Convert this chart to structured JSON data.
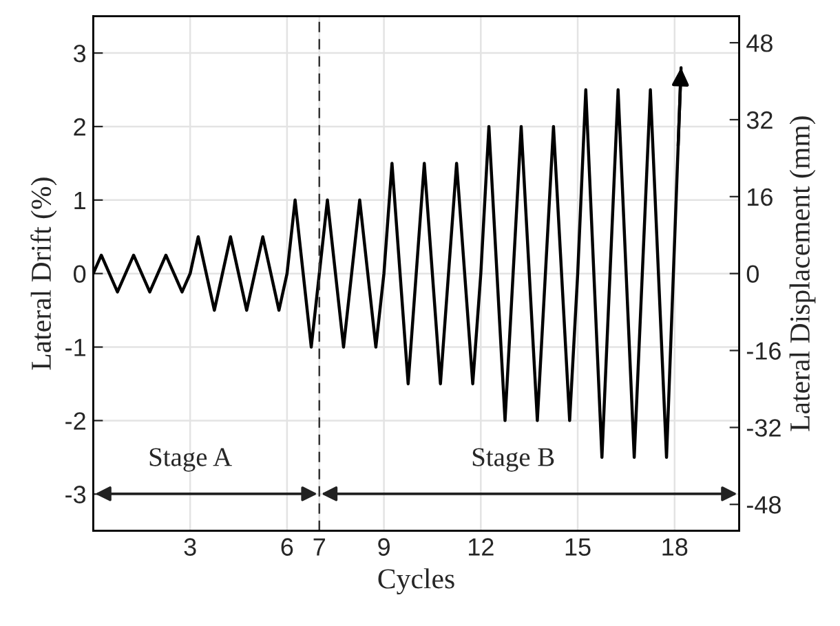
{
  "chart_data": {
    "type": "line",
    "xlabel": "Cycles",
    "ylabel": "Lateral Drift (%)",
    "y2label": "Lateral Displacement (mm)",
    "series": [
      {
        "color": "#000000",
        "x": [
          0,
          0.25,
          0.75,
          1,
          1.25,
          1.75,
          2,
          2.25,
          2.75,
          3,
          3.25,
          3.75,
          4,
          4.25,
          4.75,
          5,
          5.25,
          5.75,
          6,
          6.25,
          6.75,
          7,
          7.25,
          7.75,
          8,
          8.25,
          8.75,
          9,
          9.25,
          9.75,
          10,
          10.25,
          10.75,
          11,
          11.25,
          11.75,
          12,
          12.25,
          12.75,
          13,
          13.25,
          13.75,
          14,
          14.25,
          14.75,
          15,
          15.25,
          15.75,
          16,
          16.25,
          16.75,
          17,
          17.25,
          17.75,
          18.2
        ],
        "values": [
          0,
          0.25,
          -0.25,
          0,
          0.25,
          -0.25,
          0,
          0.25,
          -0.25,
          0,
          0.5,
          -0.5,
          0,
          0.5,
          -0.5,
          0,
          0.5,
          -0.5,
          0,
          1,
          -1,
          0,
          1,
          -1,
          0,
          1,
          -1,
          0,
          1.5,
          -1.5,
          0,
          1.5,
          -1.5,
          0,
          1.5,
          -1.5,
          0,
          2,
          -2,
          0,
          2,
          -2,
          0,
          2,
          -2,
          0,
          2.5,
          -2.5,
          0,
          2.5,
          -2.5,
          0,
          2.5,
          -2.5,
          2.8
        ]
      }
    ],
    "xlim": [
      0,
      20
    ],
    "xticks": [
      3,
      6,
      7,
      9,
      12,
      15,
      18
    ],
    "ylim": [
      -3.5,
      3.5
    ],
    "yticks": [
      {
        "value": -3,
        "label": "-3"
      },
      {
        "value": -2,
        "label": "-2"
      },
      {
        "value": -1,
        "label": "-1"
      },
      0,
      1,
      2,
      3
    ],
    "y2lim": [
      -53.5,
      53.5
    ],
    "y2ticks": [
      {
        "value": -48,
        "label": "-48"
      },
      {
        "value": -32,
        "label": "-32"
      },
      {
        "value": -16,
        "label": "-16"
      },
      0,
      16,
      32,
      48
    ],
    "ref_lines": [
      {
        "axis": "x",
        "value": 7,
        "color": "#333333",
        "line_style": "dashed"
      }
    ],
    "annotations": [
      "Stage A",
      "Stage B"
    ],
    "grid": true,
    "legend": false,
    "marker": "none",
    "line_style": "solid"
  }
}
